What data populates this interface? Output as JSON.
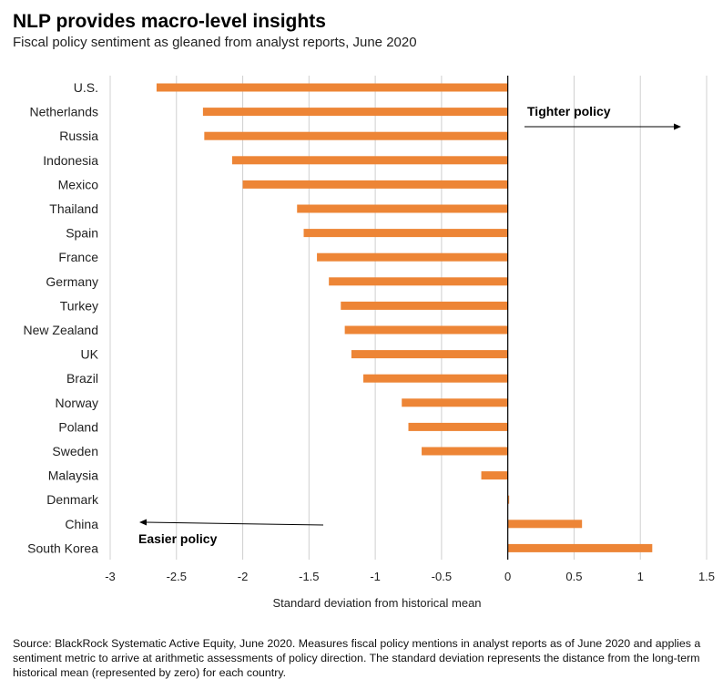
{
  "header": {
    "title": "NLP provides macro-level insights",
    "subtitle": "Fiscal policy sentiment as gleaned from analyst reports, June 2020"
  },
  "chart_data": {
    "type": "bar",
    "orientation": "horizontal",
    "categories": [
      "U.S.",
      "Netherlands",
      "Russia",
      "Indonesia",
      "Mexico",
      "Thailand",
      "Spain",
      "France",
      "Germany",
      "Turkey",
      "New Zealand",
      "UK",
      "Brazil",
      "Norway",
      "Poland",
      "Sweden",
      "Malaysia",
      "Denmark",
      "China",
      "South Korea"
    ],
    "values": [
      -2.65,
      -2.3,
      -2.29,
      -2.08,
      -2.0,
      -1.59,
      -1.54,
      -1.44,
      -1.35,
      -1.26,
      -1.23,
      -1.18,
      -1.09,
      -0.8,
      -0.75,
      -0.65,
      -0.2,
      0.01,
      0.56,
      1.09
    ],
    "xlim": [
      -3,
      1.5
    ],
    "xticks": [
      -3,
      -2.5,
      -2,
      -1.5,
      -1,
      -0.5,
      0,
      0.5,
      1,
      1.5
    ],
    "xtick_labels": [
      "-3",
      "-2.5",
      "-2",
      "-1.5",
      "-1",
      "-0.5",
      "0",
      "0.5",
      "1",
      "1.5"
    ],
    "xlabel": "Standard deviation from historical mean",
    "grid": true,
    "bar_color": "#ED8536",
    "annotations": {
      "tighter": "Tighter policy",
      "easier": "Easier policy"
    }
  },
  "footnote": "Source: BlackRock Systematic Active Equity, June 2020. Measures fiscal policy mentions in analyst reports as of June 2020 and applies a sentiment metric to arrive at arithmetic assessments of policy direction. The standard deviation represents the distance from the long-term historical mean (represented by zero) for each country."
}
